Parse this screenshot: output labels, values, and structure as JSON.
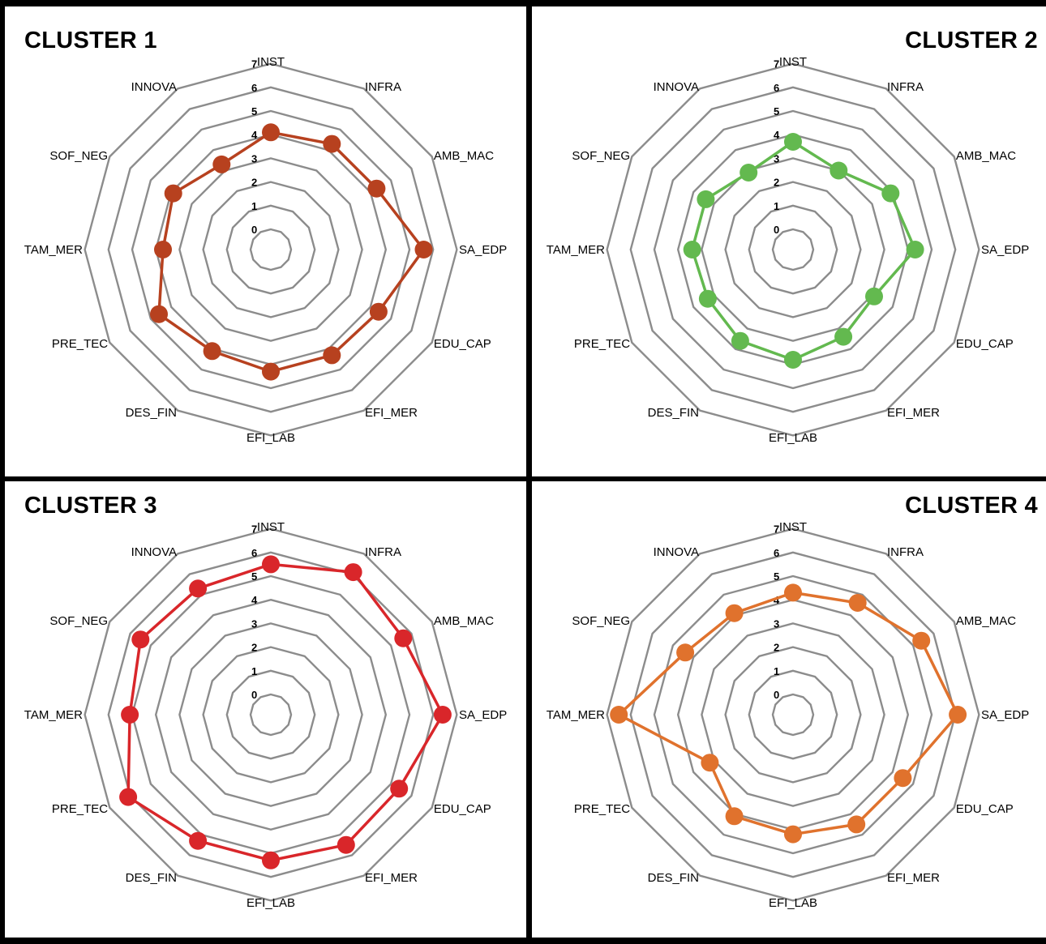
{
  "axes": [
    "INST",
    "INFRA",
    "AMB_MAC",
    "SA_EDP",
    "EDU_CAP",
    "EFI_MER",
    "EFI_LAB",
    "DES_FIN",
    "PRE_TEC",
    "TAM_MER",
    "SOF_NEG",
    "INNOVA"
  ],
  "chart_data": [
    {
      "type": "radar",
      "title": "CLUSTER 1",
      "categories": [
        "INST",
        "INFRA",
        "AMB_MAC",
        "SA_EDP",
        "EDU_CAP",
        "EFI_MER",
        "EFI_LAB",
        "DES_FIN",
        "PRE_TEC",
        "TAM_MER",
        "SOF_NEG",
        "INNOVA"
      ],
      "ticks": [
        0,
        1,
        2,
        3,
        4,
        5,
        6,
        7
      ],
      "range": [
        0,
        7
      ],
      "color": "#b7411f",
      "values": [
        4.1,
        4.3,
        4.3,
        5.6,
        4.4,
        4.3,
        4.3,
        4.1,
        4.6,
        3.7,
        3.9,
        3.3
      ]
    },
    {
      "type": "radar",
      "title": "CLUSTER 2",
      "categories": [
        "INST",
        "INFRA",
        "AMB_MAC",
        "SA_EDP",
        "EDU_CAP",
        "EFI_MER",
        "EFI_LAB",
        "DES_FIN",
        "PRE_TEC",
        "TAM_MER",
        "SOF_NEG",
        "INNOVA"
      ],
      "ticks": [
        0,
        1,
        2,
        3,
        4,
        5,
        6,
        7
      ],
      "range": [
        0,
        7
      ],
      "color": "#63b94f",
      "values": [
        3.7,
        3.0,
        3.9,
        4.3,
        3.1,
        3.4,
        3.8,
        3.6,
        3.3,
        3.4,
        3.4,
        2.9
      ]
    },
    {
      "type": "radar",
      "title": "CLUSTER 3",
      "categories": [
        "INST",
        "INFRA",
        "AMB_MAC",
        "SA_EDP",
        "EDU_CAP",
        "EFI_MER",
        "EFI_LAB",
        "DES_FIN",
        "PRE_TEC",
        "TAM_MER",
        "SOF_NEG",
        "INNOVA"
      ],
      "ticks": [
        0,
        1,
        2,
        3,
        4,
        5,
        6,
        7
      ],
      "range": [
        0,
        7
      ],
      "color": "#d9262a",
      "values": [
        5.5,
        6.1,
        5.6,
        6.4,
        5.4,
        5.5,
        5.3,
        5.3,
        6.1,
        5.1,
        5.5,
        5.3
      ]
    },
    {
      "type": "radar",
      "title": "CLUSTER 4",
      "categories": [
        "INST",
        "INFRA",
        "AMB_MAC",
        "SA_EDP",
        "EDU_CAP",
        "EFI_MER",
        "EFI_LAB",
        "DES_FIN",
        "PRE_TEC",
        "TAM_MER",
        "SOF_NEG",
        "INNOVA"
      ],
      "ticks": [
        0,
        1,
        2,
        3,
        4,
        5,
        6,
        7
      ],
      "range": [
        0,
        7
      ],
      "color": "#e0722d",
      "values": [
        4.3,
        4.6,
        5.4,
        6.1,
        4.5,
        4.5,
        4.2,
        4.1,
        3.2,
        6.5,
        4.4,
        4.1
      ]
    }
  ]
}
